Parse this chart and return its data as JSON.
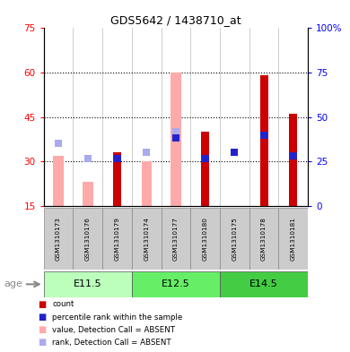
{
  "title": "GDS5642 / 1438710_at",
  "samples": [
    "GSM1310173",
    "GSM1310176",
    "GSM1310179",
    "GSM1310174",
    "GSM1310177",
    "GSM1310180",
    "GSM1310175",
    "GSM1310178",
    "GSM1310181"
  ],
  "groups": [
    {
      "label": "E11.5",
      "indices": [
        0,
        1,
        2
      ]
    },
    {
      "label": "E12.5",
      "indices": [
        3,
        4,
        5
      ]
    },
    {
      "label": "E14.5",
      "indices": [
        6,
        7,
        8
      ]
    }
  ],
  "absent": [
    true,
    true,
    false,
    true,
    true,
    false,
    false,
    false,
    false
  ],
  "count_values": [
    15,
    15,
    33,
    15,
    15,
    40,
    15,
    59,
    46
  ],
  "absent_values": [
    32,
    23,
    null,
    30,
    60,
    null,
    null,
    null,
    null
  ],
  "rank_absent_values": [
    36,
    31,
    null,
    33,
    40,
    null,
    null,
    null,
    null
  ],
  "percentile_rank": [
    null,
    null,
    31,
    null,
    38,
    31,
    33,
    39,
    32
  ],
  "ylim_left": [
    15,
    75
  ],
  "ylim_right": [
    0,
    100
  ],
  "yticks_left": [
    15,
    30,
    45,
    60,
    75
  ],
  "yticks_right": [
    0,
    25,
    50,
    75,
    100
  ],
  "color_count": "#cc0000",
  "color_absent_bar": "#ffaaaa",
  "color_percentile": "#2222cc",
  "color_rank_absent": "#aaaaee",
  "sample_bg_color": "#cccccc",
  "group_colors": [
    "#bbffbb",
    "#66ee66",
    "#44cc44"
  ],
  "dotted_lines": [
    30,
    45,
    60
  ],
  "age_label": "age",
  "legend_items": [
    {
      "color": "#cc0000",
      "label": "count"
    },
    {
      "color": "#2222cc",
      "label": "percentile rank within the sample"
    },
    {
      "color": "#ffaaaa",
      "label": "value, Detection Call = ABSENT"
    },
    {
      "color": "#aaaaee",
      "label": "rank, Detection Call = ABSENT"
    }
  ]
}
